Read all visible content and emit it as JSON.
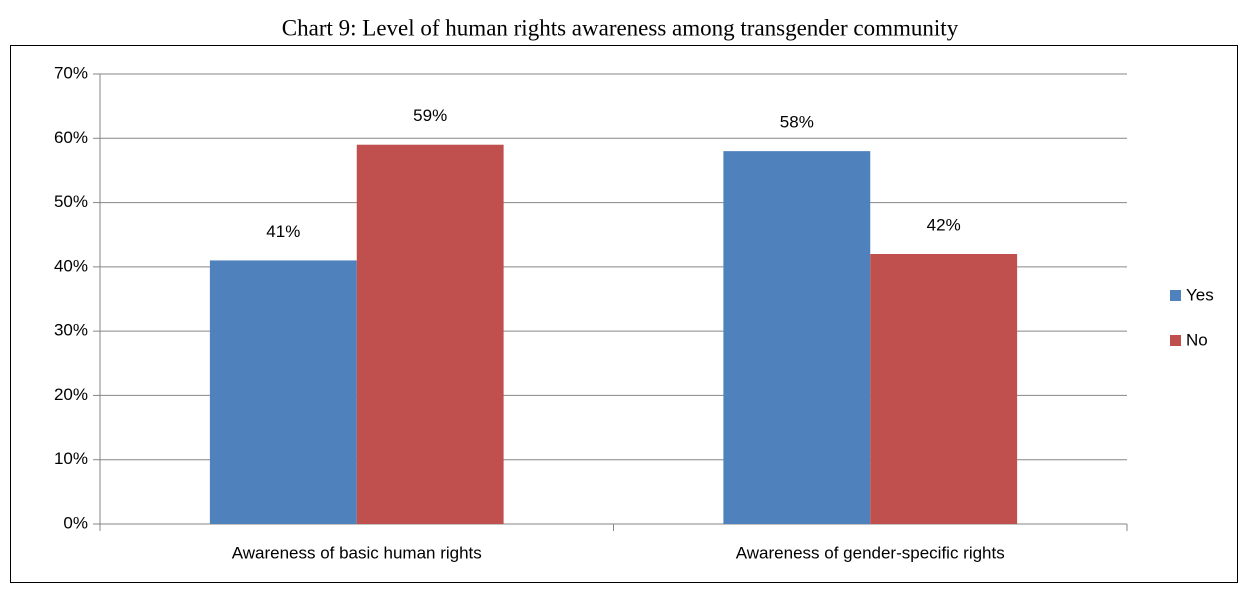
{
  "chart_data": {
    "type": "bar",
    "title": "Chart 9: Level of human rights awareness among transgender community",
    "categories": [
      "Awareness of basic human rights",
      "Awareness of gender-specific rights"
    ],
    "series": [
      {
        "name": "Yes",
        "color": "#4f81bd",
        "values": [
          41,
          58
        ],
        "value_labels": [
          "41%",
          "58%"
        ]
      },
      {
        "name": "No",
        "color": "#c0504d",
        "values": [
          59,
          42
        ],
        "value_labels": [
          "59%",
          "42%"
        ]
      }
    ],
    "ylim": [
      0,
      70
    ],
    "yticks": [
      {
        "value": 0,
        "label": "0%"
      },
      {
        "value": 10,
        "label": "10%"
      },
      {
        "value": 20,
        "label": "20%"
      },
      {
        "value": 30,
        "label": "30%"
      },
      {
        "value": 40,
        "label": "40%"
      },
      {
        "value": 50,
        "label": "50%"
      },
      {
        "value": 60,
        "label": "60%"
      },
      {
        "value": 70,
        "label": "70%"
      }
    ],
    "grid": true,
    "legend": "right"
  }
}
